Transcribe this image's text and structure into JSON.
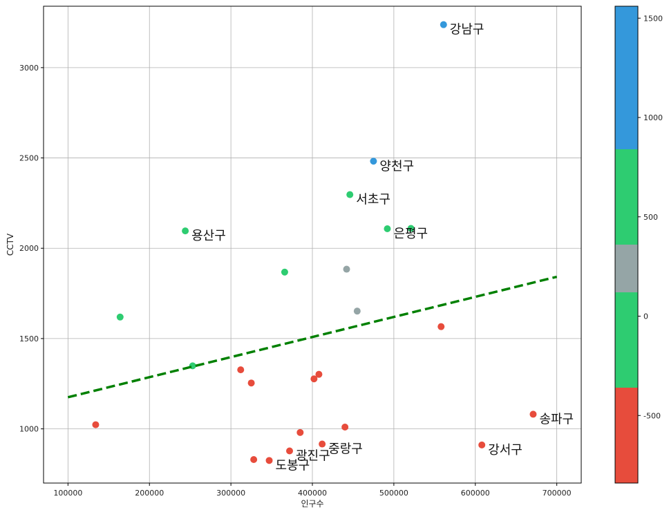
{
  "chart_data": {
    "type": "scatter",
    "title": "",
    "xlabel": "인구수",
    "ylabel": "CCTV",
    "xlim": [
      70000,
      730000
    ],
    "ylim": [
      700,
      3340
    ],
    "xticks": [
      100000,
      200000,
      300000,
      400000,
      500000,
      600000,
      700000
    ],
    "yticks": [
      1000,
      1500,
      2000,
      2500,
      3000
    ],
    "grid": true,
    "points": [
      {
        "x": 561000,
        "y": 3238,
        "residual": 1450,
        "label": "강남구"
      },
      {
        "x": 475000,
        "y": 2482,
        "residual": 880,
        "label": "양천구"
      },
      {
        "x": 446000,
        "y": 2297,
        "residual": 720,
        "label": "서초구"
      },
      {
        "x": 492000,
        "y": 2108,
        "residual": 540,
        "label": "은평구"
      },
      {
        "x": 521000,
        "y": 2110,
        "residual": 520,
        "label": ""
      },
      {
        "x": 244000,
        "y": 2096,
        "residual": 820,
        "label": "용산구"
      },
      {
        "x": 366000,
        "y": 1868,
        "residual": 400,
        "label": ""
      },
      {
        "x": 442000,
        "y": 1884,
        "residual": 300,
        "label": ""
      },
      {
        "x": 455000,
        "y": 1652,
        "residual": 120,
        "label": ""
      },
      {
        "x": 164000,
        "y": 1619,
        "residual": 390,
        "label": ""
      },
      {
        "x": 558000,
        "y": 1566,
        "residual": -380,
        "label": ""
      },
      {
        "x": 253000,
        "y": 1349,
        "residual": 50,
        "label": ""
      },
      {
        "x": 312000,
        "y": 1327,
        "residual": -420,
        "label": ""
      },
      {
        "x": 408000,
        "y": 1302,
        "residual": -450,
        "label": ""
      },
      {
        "x": 402000,
        "y": 1277,
        "residual": -460,
        "label": ""
      },
      {
        "x": 325000,
        "y": 1254,
        "residual": -400,
        "label": ""
      },
      {
        "x": 134000,
        "y": 1023,
        "residual": -420,
        "label": ""
      },
      {
        "x": 671000,
        "y": 1081,
        "residual": -780,
        "label": "송파구"
      },
      {
        "x": 440000,
        "y": 1010,
        "residual": -560,
        "label": ""
      },
      {
        "x": 385000,
        "y": 980,
        "residual": -540,
        "label": ""
      },
      {
        "x": 412000,
        "y": 916,
        "residual": -630,
        "label": "중랑구"
      },
      {
        "x": 608000,
        "y": 911,
        "residual": -800,
        "label": "강서구"
      },
      {
        "x": 372000,
        "y": 878,
        "residual": -640,
        "label": "광진구"
      },
      {
        "x": 347000,
        "y": 825,
        "residual": -660,
        "label": "도봉구"
      },
      {
        "x": 328000,
        "y": 830,
        "residual": -650,
        "label": ""
      }
    ],
    "trend_line": {
      "x": [
        100000,
        700000
      ],
      "y": [
        1175,
        1842
      ],
      "color": "#008000",
      "style": "dashed"
    },
    "colorbar": {
      "range": [
        -840,
        1560
      ],
      "ticks": [
        -500,
        0,
        500,
        1000,
        1500
      ],
      "segments": [
        {
          "from": -840,
          "to": -360,
          "color": "#e74c3c"
        },
        {
          "from": -360,
          "to": 120,
          "color": "#2ecc71"
        },
        {
          "from": 120,
          "to": 360,
          "color": "#95a5a6"
        },
        {
          "from": 360,
          "to": 840,
          "color": "#2ecc71"
        },
        {
          "from": 840,
          "to": 1560,
          "color": "#3498db"
        }
      ]
    }
  }
}
